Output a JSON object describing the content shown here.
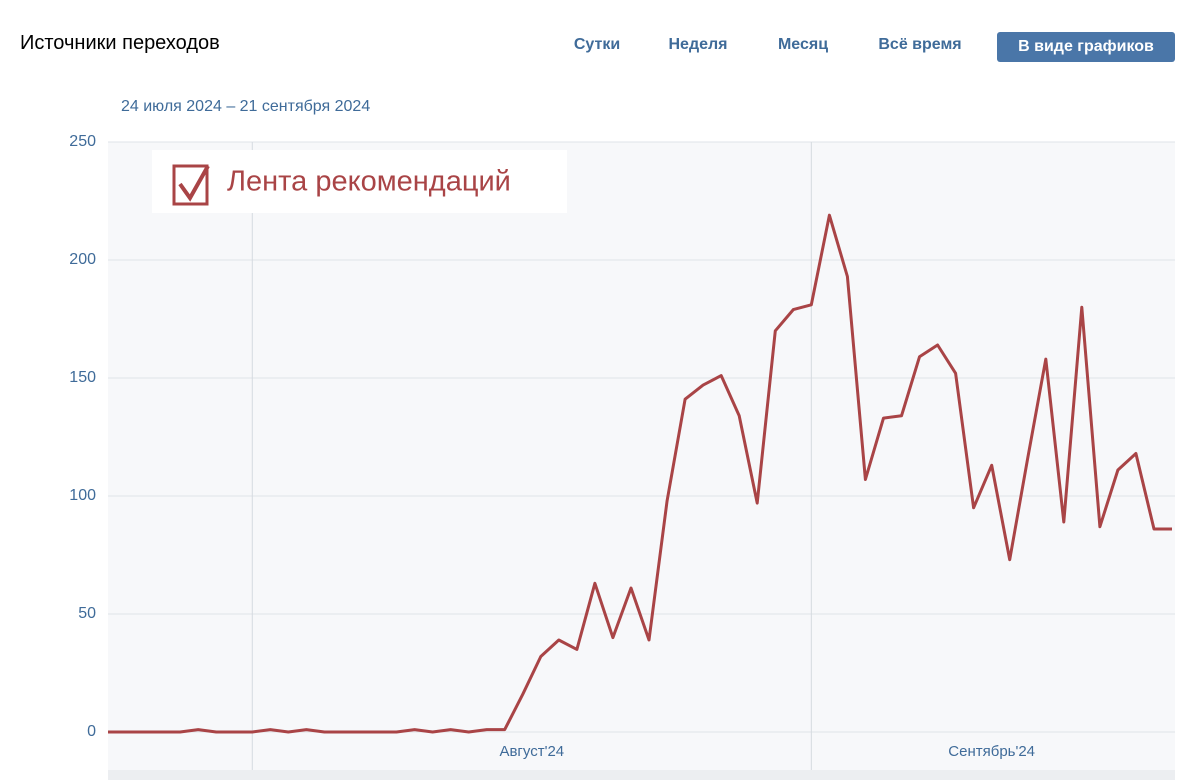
{
  "header": {
    "title": "Источники переходов",
    "tabs": [
      "Сутки",
      "Неделя",
      "Месяц",
      "Всё время"
    ],
    "view_button": "В виде графиков"
  },
  "chart_data": {
    "type": "line",
    "subtitle": "24 июля 2024 – 21 сентября 2024",
    "categories": [
      null,
      null,
      null,
      null,
      null,
      null,
      null,
      null,
      "Август'24",
      null,
      null,
      null,
      null,
      null,
      null,
      null,
      null,
      null,
      null,
      null,
      null,
      null,
      null,
      null,
      null,
      null,
      null,
      null,
      null,
      null,
      null,
      null,
      null,
      null,
      null,
      null,
      null,
      null,
      null,
      "Сентябрь'24",
      null,
      null,
      null,
      null,
      null,
      null,
      null,
      null,
      null,
      null,
      null,
      null,
      null,
      null,
      null,
      null,
      null,
      null,
      null,
      null
    ],
    "series": [
      {
        "name": "Лента рекомендаций",
        "color": "#a94446",
        "values": [
          0,
          0,
          0,
          0,
          0,
          1,
          0,
          0,
          0,
          1,
          0,
          1,
          0,
          0,
          0,
          0,
          0,
          1,
          0,
          1,
          0,
          1,
          1,
          16,
          32,
          39,
          35,
          63,
          40,
          61,
          39,
          98,
          141,
          147,
          151,
          134,
          97,
          170,
          179,
          181,
          219,
          193,
          107,
          133,
          134,
          159,
          164,
          152,
          95,
          113,
          73,
          116,
          158,
          89,
          180,
          87,
          111,
          118,
          86,
          86
        ]
      }
    ],
    "ylim": [
      0,
      250
    ],
    "yticks": [
      0,
      50,
      100,
      150,
      200,
      250
    ],
    "grid": true
  }
}
